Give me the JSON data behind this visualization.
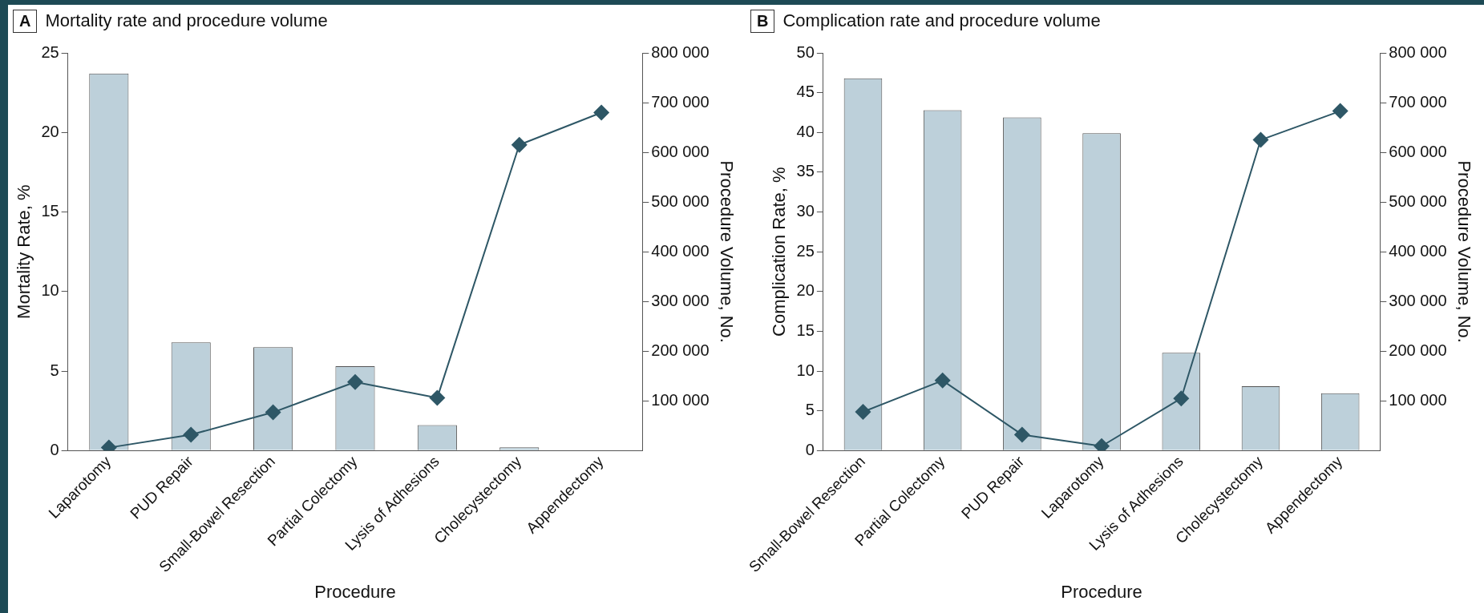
{
  "chart_data": [
    {
      "type": "bar",
      "title": "Mortality rate and procedure volume",
      "annotations": [
        "A"
      ],
      "xlabel": "Procedure",
      "ylabel": "Mortality Rate, %",
      "y2label": "Procedure Volume, No.",
      "categories": [
        "Laparotomy",
        "PUD Repair",
        "Small-Bowel Resection",
        "Partial Colectomy",
        "Lysis of Adhesions",
        "Cholecystectomy",
        "Appendectomy"
      ],
      "series": [
        {
          "color": "#bdd0da",
          "values": [
            23.7,
            6.8,
            6.5,
            5.3,
            1.6,
            0.2,
            0
          ]
        },
        {
          "type": "line",
          "axis": "y2",
          "color": "#2e5766",
          "marker": "diamond",
          "values": [
            6000,
            32000,
            77000,
            138000,
            106000,
            615000,
            680000
          ]
        }
      ],
      "ylim": [
        0,
        25
      ],
      "yticks": [
        0,
        5,
        10,
        15,
        20,
        25
      ],
      "y2lim": [
        0,
        800000
      ],
      "y2ticks": [
        {
          "value": 100000,
          "label": "100 000"
        },
        {
          "value": 200000,
          "label": "200 000"
        },
        {
          "value": 300000,
          "label": "300 000"
        },
        {
          "value": 400000,
          "label": "400 000"
        },
        {
          "value": 500000,
          "label": "500 000"
        },
        {
          "value": 600000,
          "label": "600 000"
        },
        {
          "value": 700000,
          "label": "700 000"
        },
        {
          "value": 800000,
          "label": "800 000"
        }
      ],
      "grid": false,
      "legend": false
    },
    {
      "type": "bar",
      "title": "Complication rate and procedure volume",
      "annotations": [
        "B"
      ],
      "xlabel": "Procedure",
      "ylabel": "Complication Rate, %",
      "y2label": "Procedure Volume, No.",
      "categories": [
        "Small-Bowel Resection",
        "Partial Colectomy",
        "PUD Repair",
        "Laparotomy",
        "Lysis of Adhesions",
        "Cholecystectomy",
        "Appendectomy"
      ],
      "series": [
        {
          "color": "#bdd0da",
          "values": [
            46.8,
            42.8,
            41.9,
            39.9,
            12.3,
            8.1,
            7.2
          ]
        },
        {
          "type": "line",
          "axis": "y2",
          "color": "#2e5766",
          "marker": "diamond",
          "values": [
            78000,
            141000,
            32000,
            9000,
            105000,
            625000,
            683000
          ]
        }
      ],
      "ylim": [
        0,
        50
      ],
      "yticks": [
        0,
        5,
        10,
        15,
        20,
        25,
        30,
        35,
        40,
        45,
        50
      ],
      "y2lim": [
        0,
        800000
      ],
      "y2ticks": [
        {
          "value": 100000,
          "label": "100 000"
        },
        {
          "value": 200000,
          "label": "200 000"
        },
        {
          "value": 300000,
          "label": "300 000"
        },
        {
          "value": 400000,
          "label": "400 000"
        },
        {
          "value": 500000,
          "label": "500 000"
        },
        {
          "value": 600000,
          "label": "600 000"
        },
        {
          "value": 700000,
          "label": "700 000"
        },
        {
          "value": 800000,
          "label": "800 000"
        }
      ],
      "grid": false,
      "legend": false
    }
  ]
}
